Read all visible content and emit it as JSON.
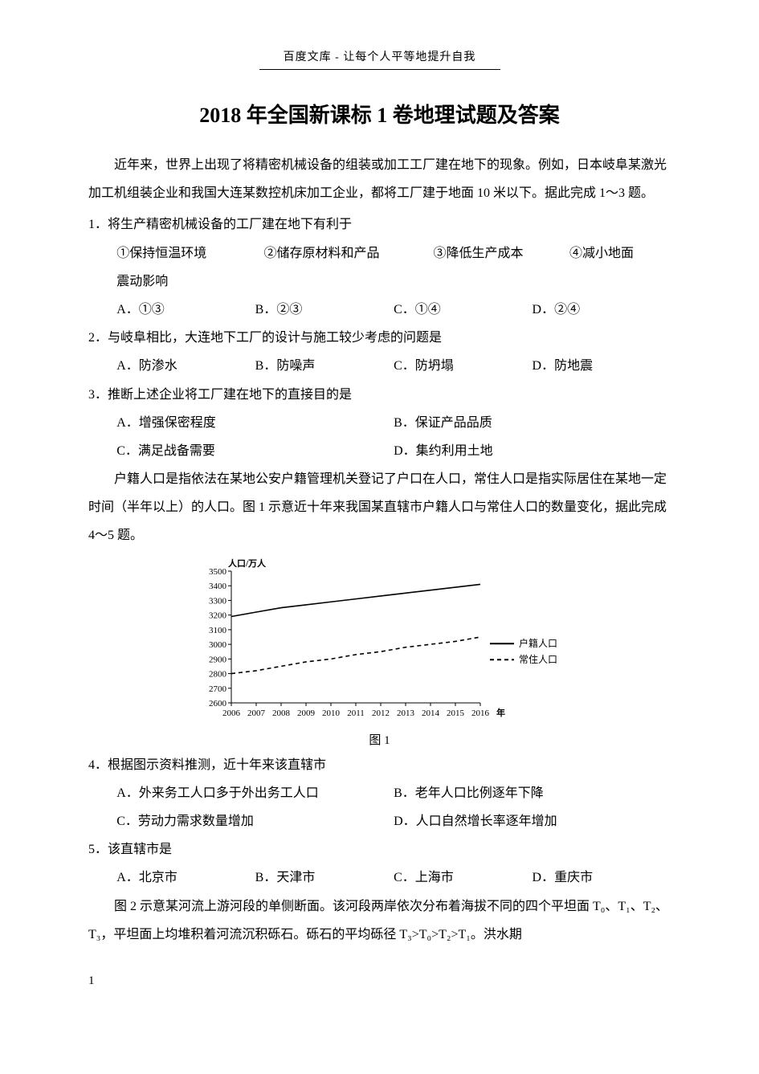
{
  "header": {
    "text": "百度文库 - 让每个人平等地提升自我"
  },
  "title": "2018 年全国新课标 1 卷地理试题及答案",
  "intro1": "近年来，世界上出现了将精密机械设备的组装或加工工厂建在地下的现象。例如，日本岐阜某激光加工机组装企业和我国大连某数控机床加工企业，都将工厂建于地面 10 米以下。据此完成 1～3 题。",
  "q1": {
    "stem": "1．将生产精密机械设备的工厂建在地下有利于",
    "sub1": "①保持恒温环境",
    "sub2": "②储存原材料和产品",
    "sub3": "③降低生产成本",
    "sub4": "④减小地面",
    "sub5": "震动影响",
    "optA": "A．①③",
    "optB": "B．②③",
    "optC": "C．①④",
    "optD": "D．②④"
  },
  "q2": {
    "stem": "2．与岐阜相比，大连地下工厂的设计与施工较少考虑的问题是",
    "optA": "A．防渗水",
    "optB": "B．防噪声",
    "optC": "C．防坍塌",
    "optD": "D．防地震"
  },
  "q3": {
    "stem": "3．推断上述企业将工厂建在地下的直接目的是",
    "optA": "A．增强保密程度",
    "optB": "B．保证产品品质",
    "optC": "C．满足战备需要",
    "optD": "D．集约利用土地"
  },
  "intro2": "户籍人口是指依法在某地公安户籍管理机关登记了户口在人口，常住人口是指实际居住在某地一定时间（半年以上）的人口。图 1 示意近十年来我国某直辖市户籍人口与常住人口的数量变化，据此完成 4～5 题。",
  "chart": {
    "type": "line",
    "y_label": "人口/万人",
    "x_label": "年",
    "caption": "图 1",
    "x_ticks": [
      "2006",
      "2007",
      "2008",
      "2009",
      "2010",
      "2011",
      "2012",
      "2013",
      "2014",
      "2015",
      "2016"
    ],
    "y_ticks": [
      2600,
      2700,
      2800,
      2900,
      3000,
      3100,
      3200,
      3300,
      3400,
      3500
    ],
    "ylim": [
      2600,
      3500
    ],
    "series": [
      {
        "name": "户籍人口",
        "color": "#000000",
        "dash": "solid",
        "values": [
          3190,
          3220,
          3250,
          3270,
          3290,
          3310,
          3330,
          3350,
          3370,
          3390,
          3410
        ]
      },
      {
        "name": "常住人口",
        "color": "#000000",
        "dash": "dashed",
        "values": [
          2800,
          2820,
          2850,
          2880,
          2900,
          2930,
          2950,
          2980,
          3000,
          3020,
          3050
        ]
      }
    ],
    "legend_position": "right",
    "axis_color": "#000000",
    "grid_color": "#dddddd",
    "font_size_axis": 11,
    "font_size_legend": 12
  },
  "q4": {
    "stem": "4．根据图示资料推测，近十年来该直辖市",
    "optA": "A．外来务工人口多于外出务工人口",
    "optB": "B．老年人口比例逐年下降",
    "optC": "C．劳动力需求数量增加",
    "optD": "D．人口自然增长率逐年增加"
  },
  "q5": {
    "stem": "5．该直辖市是",
    "optA": "A．北京市",
    "optB": "B．天津市",
    "optC": "C．上海市",
    "optD": "D．重庆市"
  },
  "intro3": "图 2 示意某河流上游河段的单侧断面。该河段两岸依次分布着海拔不同的四个平坦面 T₀、T₁、T₂、T₃，平坦面上均堆积着河流沉积砾石。砾石的平均砾径 T₃>T₀>T₂>T₁。洪水期",
  "page_number": "1"
}
